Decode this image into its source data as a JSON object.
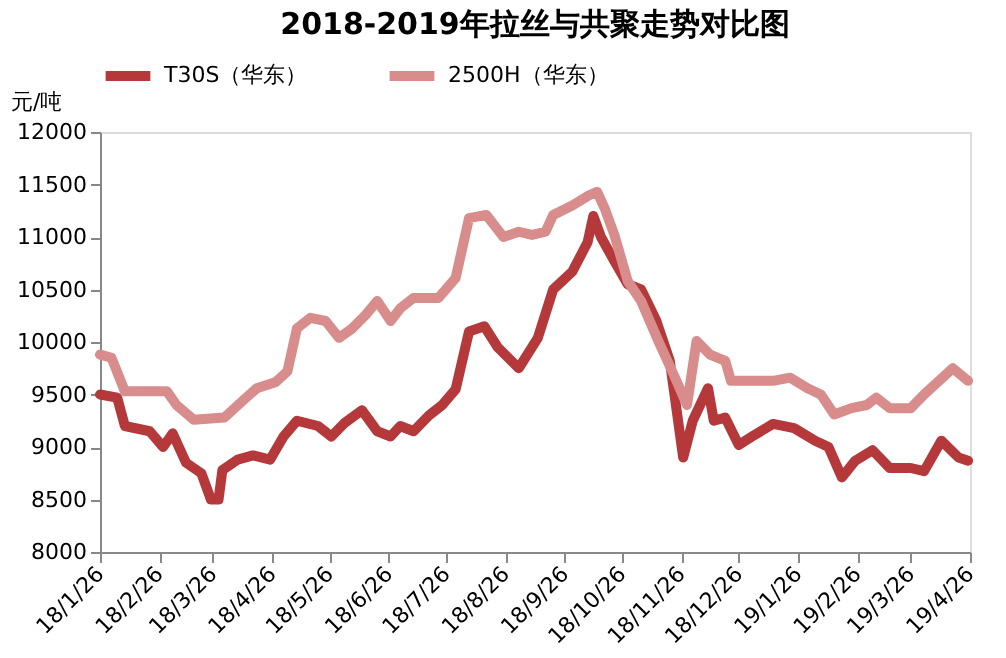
{
  "chart_data": {
    "type": "line",
    "title": "2018-2019年拉丝与共聚走势对比图",
    "ylabel": "元/吨",
    "ylim": [
      8000,
      12000
    ],
    "yticks": [
      8000,
      8500,
      9000,
      9500,
      10000,
      10500,
      11000,
      11500,
      12000
    ],
    "xlim": [
      "2018-01-26",
      "2019-04-26"
    ],
    "xticks": [
      {
        "value": "2018-01-26",
        "label": "18/1/26"
      },
      {
        "value": "2018-02-26",
        "label": "18/2/26"
      },
      {
        "value": "2018-03-26",
        "label": "18/3/26"
      },
      {
        "value": "2018-04-26",
        "label": "18/4/26"
      },
      {
        "value": "2018-05-26",
        "label": "18/5/26"
      },
      {
        "value": "2018-06-26",
        "label": "18/6/26"
      },
      {
        "value": "2018-07-26",
        "label": "18/7/26"
      },
      {
        "value": "2018-08-26",
        "label": "18/8/26"
      },
      {
        "value": "2018-09-26",
        "label": "18/9/26"
      },
      {
        "value": "2018-10-26",
        "label": "18/10/26"
      },
      {
        "value": "2018-11-26",
        "label": "18/11/26"
      },
      {
        "value": "2018-12-26",
        "label": "18/12/26"
      },
      {
        "value": "2019-01-26",
        "label": "19/1/26"
      },
      {
        "value": "2019-02-26",
        "label": "19/2/26"
      },
      {
        "value": "2019-03-26",
        "label": "19/3/26"
      },
      {
        "value": "2019-04-26",
        "label": "19/4/26"
      }
    ],
    "grid": false,
    "legend": "top",
    "marker": "none",
    "line_style": "solid",
    "series": [
      {
        "name": "T30S（华东）",
        "color": "#b5383a",
        "x": [
          "2018-01-26",
          "2018-02-04",
          "2018-02-08",
          "2018-02-21",
          "2018-02-28",
          "2018-03-05",
          "2018-03-12",
          "2018-03-20",
          "2018-03-25",
          "2018-03-29",
          "2018-03-31",
          "2018-04-08",
          "2018-04-16",
          "2018-04-25",
          "2018-05-02",
          "2018-05-09",
          "2018-05-20",
          "2018-05-27",
          "2018-06-03",
          "2018-06-12",
          "2018-06-20",
          "2018-06-27",
          "2018-07-02",
          "2018-07-09",
          "2018-07-17",
          "2018-07-24",
          "2018-07-31",
          "2018-08-07",
          "2018-08-15",
          "2018-08-22",
          "2018-09-02",
          "2018-09-12",
          "2018-09-20",
          "2018-09-30",
          "2018-10-08",
          "2018-10-11",
          "2018-10-15",
          "2018-10-22",
          "2018-10-29",
          "2018-11-05",
          "2018-11-13",
          "2018-11-20",
          "2018-11-27",
          "2018-12-02",
          "2018-12-10",
          "2018-12-13",
          "2018-12-19",
          "2018-12-26",
          "2019-01-02",
          "2019-01-13",
          "2019-01-24",
          "2019-02-04",
          "2019-02-11",
          "2019-02-18",
          "2019-02-25",
          "2019-03-06",
          "2019-03-15",
          "2019-03-26",
          "2019-04-02",
          "2019-04-11",
          "2019-04-20",
          "2019-04-25"
        ],
        "values": [
          9500,
          9470,
          9200,
          9150,
          9000,
          9130,
          8850,
          8750,
          8500,
          8500,
          8780,
          8880,
          8920,
          8880,
          9100,
          9250,
          9200,
          9100,
          9230,
          9350,
          9150,
          9100,
          9200,
          9150,
          9300,
          9400,
          9550,
          10100,
          10150,
          9950,
          9750,
          10040,
          10500,
          10670,
          10950,
          11200,
          11000,
          10770,
          10550,
          10500,
          10200,
          9820,
          8900,
          9250,
          9560,
          9250,
          9280,
          9020,
          9100,
          9220,
          9180,
          9060,
          9000,
          8710,
          8870,
          8970,
          8800,
          8800,
          8770,
          9060,
          8900,
          8870
        ]
      },
      {
        "name": "2500H（华东）",
        "color": "#d98c8c",
        "x": [
          "2018-01-26",
          "2018-02-01",
          "2018-02-08",
          "2018-02-22",
          "2018-03-02",
          "2018-03-07",
          "2018-03-16",
          "2018-04-01",
          "2018-04-10",
          "2018-04-18",
          "2018-04-28",
          "2018-05-04",
          "2018-05-09",
          "2018-05-16",
          "2018-05-24",
          "2018-05-31",
          "2018-06-07",
          "2018-06-14",
          "2018-06-20",
          "2018-06-27",
          "2018-07-02",
          "2018-07-09",
          "2018-07-22",
          "2018-07-31",
          "2018-08-07",
          "2018-08-16",
          "2018-08-25",
          "2018-09-02",
          "2018-09-09",
          "2018-09-16",
          "2018-09-20",
          "2018-09-30",
          "2018-10-09",
          "2018-10-13",
          "2018-10-17",
          "2018-10-22",
          "2018-10-29",
          "2018-11-05",
          "2018-11-14",
          "2018-11-22",
          "2018-11-29",
          "2018-12-04",
          "2018-12-11",
          "2018-12-19",
          "2018-12-22",
          "2019-01-02",
          "2019-01-13",
          "2019-01-22",
          "2019-01-31",
          "2019-02-07",
          "2019-02-14",
          "2019-02-23",
          "2019-03-03",
          "2019-03-08",
          "2019-03-15",
          "2019-03-26",
          "2019-04-02",
          "2019-04-17",
          "2019-04-25"
        ],
        "values": [
          9880,
          9850,
          9530,
          9530,
          9530,
          9400,
          9260,
          9280,
          9430,
          9560,
          9620,
          9720,
          10130,
          10230,
          10200,
          10040,
          10130,
          10260,
          10390,
          10200,
          10320,
          10420,
          10420,
          10610,
          11180,
          11210,
          11000,
          11050,
          11020,
          11050,
          11210,
          11300,
          11400,
          11430,
          11270,
          11020,
          10580,
          10390,
          10010,
          9690,
          9400,
          10010,
          9880,
          9820,
          9630,
          9630,
          9630,
          9660,
          9560,
          9500,
          9310,
          9370,
          9400,
          9470,
          9370,
          9370,
          9500,
          9750,
          9630
        ]
      }
    ]
  }
}
